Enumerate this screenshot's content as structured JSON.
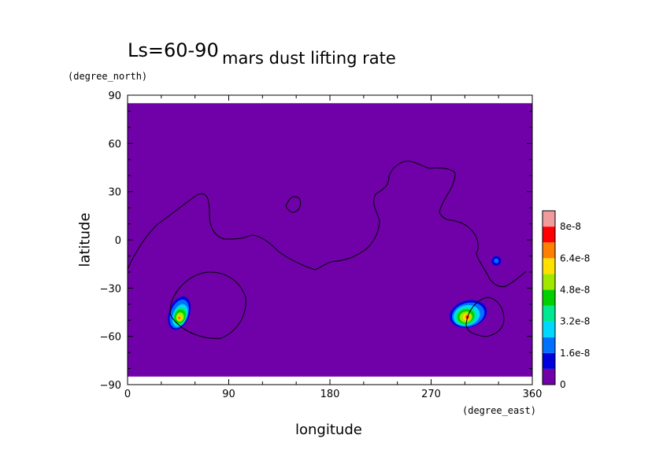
{
  "chart_data": {
    "type": "heatmap",
    "title": "mars dust lifting rate",
    "season_label": "Ls=60-90",
    "xlabel": "longitude",
    "ylabel": "latitude",
    "x_unit": "(degree_east)",
    "y_unit": "(degree_north)",
    "xlim": [
      0,
      360
    ],
    "ylim": [
      -90,
      90
    ],
    "data_lat_range": [
      -85,
      85
    ],
    "x_ticks": [
      "0",
      "90",
      "180",
      "270",
      "360"
    ],
    "y_ticks": [
      "90",
      "60",
      "30",
      "0",
      "−30",
      "−60",
      "−90"
    ],
    "colorbar": {
      "levels": [
        "0",
        "1.6e-8",
        "3.2e-8",
        "4.8e-8",
        "6.4e-8",
        "8e-8"
      ],
      "colors": [
        "#7000a8",
        "#0000dc",
        "#0070ff",
        "#00d8ff",
        "#00e890",
        "#00d000",
        "#a0e800",
        "#ffe000",
        "#ff8000",
        "#ff0000",
        "#f09c9c"
      ]
    },
    "background_value": 0,
    "lifting_regions": [
      {
        "name": "west",
        "center_lon": 46,
        "center_lat": -47,
        "peak": "~6e-8"
      },
      {
        "name": "east",
        "center_lon": 303,
        "center_lat": -47,
        "peak": "~8e-8"
      },
      {
        "name": "small",
        "center_lon": 328,
        "center_lat": -13,
        "peak": "~1.6e-8"
      }
    ],
    "grid": false,
    "legend_placement": "right (colorbar)"
  }
}
